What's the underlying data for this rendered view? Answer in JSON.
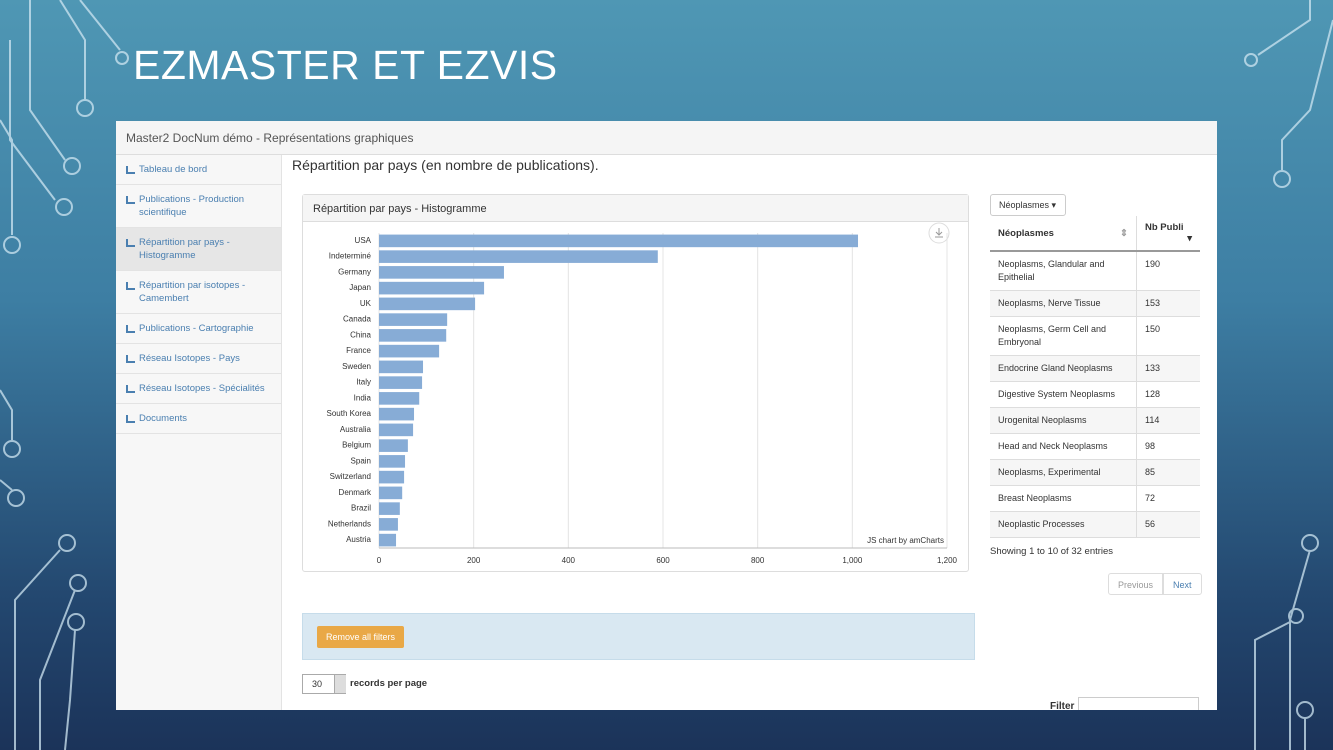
{
  "slide_title": "EZMASTER ET EZVIS",
  "app_title": "Master2 DocNum démo - Représentations graphiques",
  "sidebar": [
    "Tableau de bord",
    "Publications - Production scientifique",
    "Répartition par pays - Histogramme",
    "Répartition par isotopes - Camembert",
    "Publications - Cartographie",
    "Réseau Isotopes - Pays",
    "Réseau Isotopes - Spécialités",
    "Documents"
  ],
  "page_heading": "Répartition par pays (en nombre de publications).",
  "panel_title": "Répartition par pays - Histogramme",
  "chart_data": {
    "type": "bar",
    "categories": [
      "USA",
      "Indeterminé",
      "Germany",
      "Japan",
      "UK",
      "Canada",
      "China",
      "France",
      "Sweden",
      "Italy",
      "India",
      "South Korea",
      "Australia",
      "Belgium",
      "Spain",
      "Switzerland",
      "Denmark",
      "Brazil",
      "Netherlands",
      "Austria"
    ],
    "values": [
      1012,
      589,
      264,
      222,
      203,
      144,
      142,
      127,
      93,
      91,
      85,
      74,
      72,
      61,
      55,
      53,
      49,
      44,
      40,
      36
    ],
    "color": "#87acd6",
    "xlim": [
      0,
      1200
    ],
    "xticks": [
      0,
      200,
      400,
      600,
      800,
      {
        "value": 1000,
        "label": "1,000"
      },
      {
        "value": 1200,
        "label": "1,200"
      }
    ],
    "grid": true,
    "credit": "JS chart by amCharts"
  },
  "dropdown": "Néoplasmes",
  "table": {
    "columns": [
      "Néoplasmes",
      "Nb Publi"
    ],
    "rows": [
      [
        "Neoplasms, Glandular and Epithelial",
        190
      ],
      [
        "Neoplasms, Nerve Tissue",
        153
      ],
      [
        "Neoplasms, Germ Cell and Embryonal",
        150
      ],
      [
        "Endocrine Gland Neoplasms",
        133
      ],
      [
        "Digestive System Neoplasms",
        128
      ],
      [
        "Urogenital Neoplasms",
        114
      ],
      [
        "Head and Neck Neoplasms",
        98
      ],
      [
        "Neoplasms, Experimental",
        85
      ],
      [
        "Breast Neoplasms",
        72
      ],
      [
        "Neoplastic Processes",
        56
      ]
    ]
  },
  "table_info": "Showing 1 to 10 of 32 entries",
  "pagination": [
    "Previous",
    "Next"
  ],
  "filters_button": "Remove all filters",
  "records_per_page": {
    "value": 30,
    "label": "records per page"
  },
  "filter_label": "Filter"
}
